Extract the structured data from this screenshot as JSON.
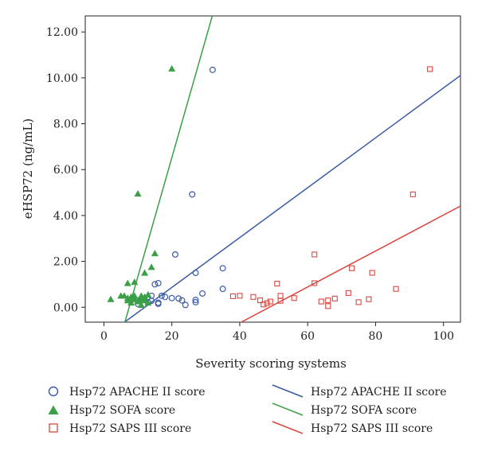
{
  "chart_data": {
    "type": "scatter",
    "title": "",
    "xlabel": "Severity scoring systems",
    "ylabel": "eHSP72 (ng/mL)",
    "xlim": [
      -5.5,
      105
    ],
    "ylim": [
      -0.65,
      12.7
    ],
    "x_ticks": [
      0,
      20,
      40,
      60,
      80,
      100
    ],
    "x_tick_labels": [
      "0",
      "20",
      "40",
      "60",
      "80",
      "100"
    ],
    "y_ticks": [
      0,
      2,
      4,
      6,
      8,
      10,
      12
    ],
    "y_tick_labels": [
      "0.00",
      "2.00",
      "4.00",
      "6.00",
      "8.00",
      "10.00",
      "12.00"
    ],
    "grid": false,
    "legend_position": "bottom",
    "series": [
      {
        "name": "Hsp72 APACHE II score",
        "marker": "circle",
        "color": "#3a5aa6",
        "points": [
          [
            32,
            10.35
          ],
          [
            26,
            4.92
          ],
          [
            21,
            2.3
          ],
          [
            35,
            1.7
          ],
          [
            27,
            1.5
          ],
          [
            16,
            1.05
          ],
          [
            15,
            1.0
          ],
          [
            35,
            0.8
          ],
          [
            29,
            0.6
          ],
          [
            17,
            0.5
          ],
          [
            14,
            0.5
          ],
          [
            20,
            0.4
          ],
          [
            22,
            0.38
          ],
          [
            12,
            0.35
          ],
          [
            27,
            0.32
          ],
          [
            23,
            0.3
          ],
          [
            11,
            0.3
          ],
          [
            14,
            0.28
          ],
          [
            27,
            0.22
          ],
          [
            13,
            0.22
          ],
          [
            16,
            0.2
          ],
          [
            16,
            0.15
          ],
          [
            24,
            0.1
          ],
          [
            10,
            0.15
          ],
          [
            8,
            0.3
          ],
          [
            18,
            0.45
          ]
        ]
      },
      {
        "name": "Hsp72 SOFA score",
        "marker": "triangle",
        "color": "#3aa047",
        "points": [
          [
            20,
            10.4
          ],
          [
            10,
            4.95
          ],
          [
            15,
            2.35
          ],
          [
            14,
            1.75
          ],
          [
            12,
            1.5
          ],
          [
            9,
            1.1
          ],
          [
            7,
            1.05
          ],
          [
            5,
            0.5
          ],
          [
            6,
            0.5
          ],
          [
            2,
            0.35
          ],
          [
            7,
            0.4
          ],
          [
            8,
            0.45
          ],
          [
            9,
            0.35
          ],
          [
            11,
            0.5
          ],
          [
            12,
            0.45
          ],
          [
            13,
            0.55
          ],
          [
            10,
            0.25
          ],
          [
            11,
            0.1
          ],
          [
            8,
            0.2
          ],
          [
            12,
            0.3
          ],
          [
            9,
            0.5
          ],
          [
            10,
            0.3
          ],
          [
            7,
            0.3
          ],
          [
            11,
            0.35
          ],
          [
            13,
            0.2
          ]
        ]
      },
      {
        "name": "Hsp72 SAPS III score",
        "marker": "square",
        "color": "#d9473f",
        "points": [
          [
            96,
            10.38
          ],
          [
            91,
            4.92
          ],
          [
            62,
            2.3
          ],
          [
            73,
            1.7
          ],
          [
            79,
            1.5
          ],
          [
            51,
            1.03
          ],
          [
            62,
            1.05
          ],
          [
            86,
            0.8
          ],
          [
            72,
            0.62
          ],
          [
            38,
            0.48
          ],
          [
            40,
            0.5
          ],
          [
            44,
            0.45
          ],
          [
            52,
            0.5
          ],
          [
            56,
            0.4
          ],
          [
            68,
            0.38
          ],
          [
            78,
            0.35
          ],
          [
            52,
            0.28
          ],
          [
            46,
            0.3
          ],
          [
            49,
            0.25
          ],
          [
            64,
            0.25
          ],
          [
            66,
            0.3
          ],
          [
            75,
            0.22
          ],
          [
            48,
            0.18
          ],
          [
            47,
            0.12
          ],
          [
            66,
            0.05
          ]
        ]
      }
    ],
    "fit_lines": [
      {
        "name": "Hsp72 APACHE II score",
        "color": "#3a5aa6",
        "slope": 0.1087,
        "intercept": -1.31
      },
      {
        "name": "Hsp72 SOFA score",
        "color": "#3aa047",
        "slope": 0.5185,
        "intercept": -3.85
      },
      {
        "name": "Hsp72 SAPS III score",
        "color": "#d9473f",
        "slope": 0.0784,
        "intercept": -3.82
      }
    ]
  },
  "legend": {
    "items": [
      {
        "label": "Hsp72 APACHE II score",
        "kind": "marker",
        "marker": "circle",
        "color": "#3a5aa6"
      },
      {
        "label": "Hsp72 SOFA score",
        "kind": "marker",
        "marker": "triangle",
        "color": "#3aa047"
      },
      {
        "label": "Hsp72 SAPS III score",
        "kind": "marker",
        "marker": "square",
        "color": "#d9473f"
      },
      {
        "label": "Hsp72 APACHE II score",
        "kind": "line",
        "color": "#3a5aa6"
      },
      {
        "label": "Hsp72 SOFA score",
        "kind": "line",
        "color": "#3aa047"
      },
      {
        "label": "Hsp72 SAPS III score",
        "kind": "line",
        "color": "#d9473f"
      }
    ]
  }
}
